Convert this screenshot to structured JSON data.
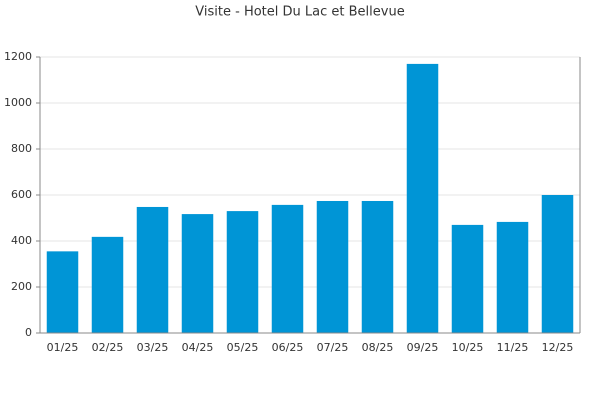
{
  "chart_data": {
    "type": "bar",
    "title": "Visite - Hotel Du Lac et Bellevue",
    "categories": [
      "01/25",
      "02/25",
      "03/25",
      "04/25",
      "05/25",
      "06/25",
      "07/25",
      "08/25",
      "09/25",
      "10/25",
      "11/25",
      "12/25"
    ],
    "values": [
      355,
      418,
      548,
      517,
      530,
      557,
      574,
      574,
      1170,
      470,
      483,
      600
    ],
    "color": "#0095d6",
    "ylim": [
      0,
      1200
    ],
    "yticks": [
      0,
      200,
      400,
      600,
      800,
      1000,
      1200
    ],
    "grid": true
  }
}
